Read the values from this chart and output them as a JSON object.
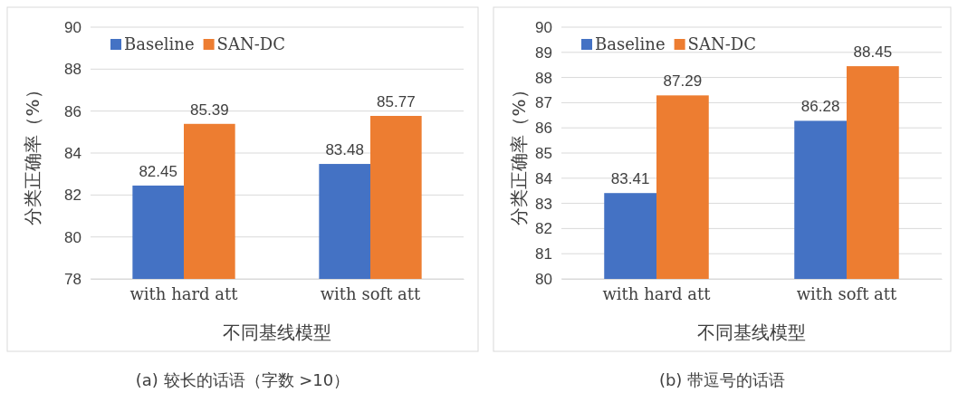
{
  "chart_data": [
    {
      "type": "bar",
      "title": "(a) 较长的话语（字数 >10）",
      "xlabel": "不同基线模型",
      "ylabel": "分类正确率（%）",
      "categories": [
        "with hard att",
        "with soft att"
      ],
      "series": [
        {
          "name": "Baseline",
          "color": "#4472c4",
          "values": [
            82.45,
            83.48
          ]
        },
        {
          "name": "SAN-DC",
          "color": "#ed7d31",
          "values": [
            85.39,
            85.77
          ]
        }
      ],
      "ylim": [
        78,
        90
      ],
      "yticks": [
        78,
        80,
        82,
        84,
        86,
        88,
        90
      ],
      "grid": "y",
      "legend": "top left",
      "data_labels": true
    },
    {
      "type": "bar",
      "title": "(b) 带逗号的话语",
      "xlabel": "不同基线模型",
      "ylabel": "分类正确率（%）",
      "categories": [
        "with hard att",
        "with soft att"
      ],
      "series": [
        {
          "name": "Baseline",
          "color": "#4472c4",
          "values": [
            83.41,
            86.28
          ]
        },
        {
          "name": "SAN-DC",
          "color": "#ed7d31",
          "values": [
            87.29,
            88.45
          ]
        }
      ],
      "ylim": [
        80,
        90
      ],
      "yticks": [
        80,
        81,
        82,
        83,
        84,
        85,
        86,
        87,
        88,
        89,
        90
      ],
      "grid": "y",
      "legend": "top left",
      "data_labels": true
    }
  ]
}
